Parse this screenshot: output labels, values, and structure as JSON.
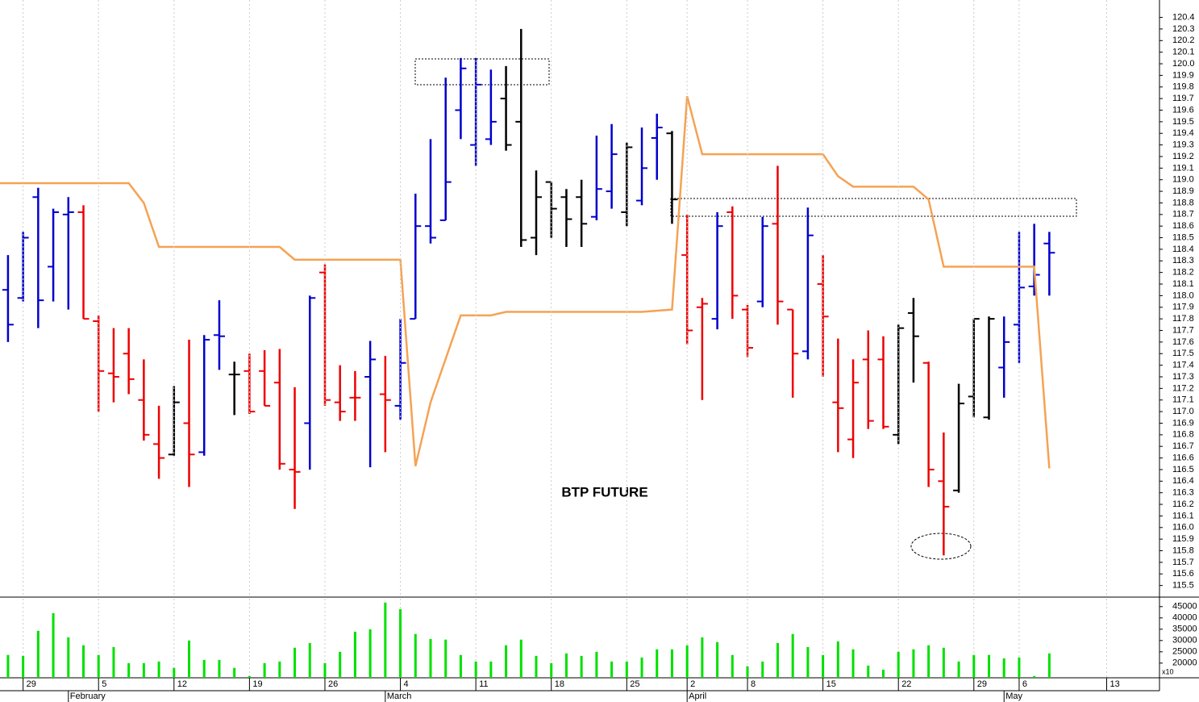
{
  "chart_data": [
    {
      "type": "ohlc",
      "title": "BTP FUTURE",
      "xlim": [
        -0.53,
        76.3
      ],
      "ylim": [
        115.4,
        120.55
      ],
      "yticks": [
        115.5,
        115.6,
        115.7,
        115.8,
        115.9,
        {
          "value": 116,
          "label": "116.0"
        },
        116.1,
        116.2,
        116.3,
        116.4,
        116.5,
        116.6,
        116.7,
        116.8,
        116.9,
        {
          "value": 117,
          "label": "117.0"
        },
        117.1,
        117.2,
        117.3,
        117.4,
        117.5,
        117.6,
        117.7,
        117.8,
        117.9,
        {
          "value": 118,
          "label": "118.0"
        },
        118.1,
        118.2,
        118.3,
        118.4,
        118.5,
        118.6,
        118.7,
        118.8,
        118.9,
        {
          "value": 119,
          "label": "119.0"
        },
        119.1,
        119.2,
        119.3,
        119.4,
        119.5,
        119.6,
        119.7,
        119.8,
        119.9,
        {
          "value": 120,
          "label": "120.0"
        },
        120.1,
        120.2,
        120.3,
        120.4
      ],
      "x": [
        0,
        1,
        2,
        3,
        4,
        5,
        6,
        7,
        8,
        9,
        10,
        11,
        12,
        13,
        14,
        15,
        16,
        17,
        18,
        19,
        20,
        21,
        22,
        23,
        24,
        25,
        26,
        27,
        28,
        29,
        30,
        31,
        32,
        33,
        34,
        35,
        36,
        37,
        38,
        39,
        40,
        41,
        42,
        43,
        44,
        45,
        46,
        47,
        48,
        49,
        50,
        51,
        52,
        53,
        54,
        55,
        56,
        57,
        58,
        59,
        60,
        61,
        62,
        63,
        64,
        65,
        66,
        67,
        68,
        69
      ],
      "high": [
        118.35,
        118.55,
        118.93,
        118.75,
        118.85,
        118.78,
        117.83,
        117.72,
        117.72,
        117.45,
        117.05,
        117.22,
        117.62,
        117.66,
        117.96,
        117.43,
        117.5,
        117.53,
        117.54,
        117.21,
        118.0,
        118.27,
        117.4,
        117.35,
        117.61,
        117.48,
        117.8,
        118.88,
        119.35,
        119.88,
        120.05,
        120.05,
        119.95,
        119.98,
        120.3,
        119.08,
        118.98,
        118.92,
        119.0,
        119.38,
        119.48,
        119.32,
        119.45,
        119.57,
        119.42,
        118.7,
        117.98,
        118.72,
        118.77,
        117.92,
        118.68,
        119.12,
        117.88,
        118.76,
        118.35,
        117.63,
        117.45,
        117.7,
        117.65,
        117.75,
        117.98,
        117.43,
        116.82,
        117.24,
        117.8,
        117.82,
        117.82,
        118.55,
        118.62,
        118.55
      ],
      "low": [
        117.6,
        117.95,
        117.72,
        117.95,
        117.88,
        117.8,
        117.0,
        117.08,
        117.15,
        116.75,
        116.42,
        116.62,
        116.35,
        116.62,
        117.36,
        116.97,
        116.98,
        117.05,
        116.5,
        116.16,
        116.5,
        117.05,
        116.92,
        116.92,
        116.52,
        116.65,
        116.93,
        117.8,
        118.45,
        118.65,
        119.35,
        119.12,
        119.3,
        119.25,
        118.42,
        118.35,
        118.5,
        118.42,
        118.42,
        118.65,
        118.75,
        118.6,
        118.78,
        119.0,
        118.62,
        117.58,
        117.1,
        117.71,
        117.8,
        117.47,
        117.9,
        117.75,
        117.12,
        117.45,
        117.3,
        116.65,
        116.6,
        116.85,
        116.85,
        116.72,
        117.25,
        116.35,
        115.76,
        116.3,
        116.95,
        116.93,
        117.12,
        117.42,
        118.0,
        118.0
      ],
      "open": [
        118.05,
        117.98,
        118.85,
        118.25,
        118.7,
        118.72,
        117.78,
        117.33,
        117.5,
        117.1,
        116.72,
        116.63,
        116.9,
        116.65,
        117.66,
        117.32,
        117.35,
        117.35,
        117.25,
        116.5,
        116.9,
        118.2,
        117.08,
        117.12,
        117.3,
        117.15,
        117.05,
        117.8,
        118.6,
        118.65,
        119.6,
        119.3,
        119.35,
        119.7,
        119.5,
        118.5,
        118.98,
        118.85,
        118.85,
        118.68,
        118.9,
        118.72,
        118.82,
        119.36,
        119.4,
        118.35,
        117.9,
        117.8,
        118.72,
        117.88,
        117.95,
        118.62,
        117.88,
        117.52,
        118.1,
        117.08,
        116.76,
        117.45,
        117.45,
        116.8,
        117.85,
        117.42,
        116.4,
        116.32,
        117.13,
        116.95,
        117.38,
        117.75,
        118.08,
        118.45
      ],
      "close": [
        117.75,
        118.5,
        117.96,
        118.72,
        118.72,
        117.8,
        117.35,
        117.3,
        117.28,
        116.8,
        116.6,
        117.08,
        116.63,
        117.62,
        117.65,
        117.32,
        117.0,
        117.05,
        116.55,
        116.48,
        117.98,
        117.1,
        117.0,
        117.12,
        117.45,
        117.1,
        117.42,
        118.6,
        118.5,
        118.98,
        119.96,
        119.82,
        119.5,
        119.3,
        118.48,
        118.85,
        118.75,
        118.66,
        118.62,
        118.92,
        119.22,
        119.28,
        119.1,
        119.45,
        118.83,
        117.7,
        117.93,
        118.6,
        118.0,
        117.55,
        118.6,
        117.95,
        117.5,
        118.52,
        117.82,
        117.03,
        117.25,
        116.92,
        116.87,
        117.72,
        117.65,
        116.5,
        116.18,
        117.07,
        117.8,
        117.8,
        117.6,
        118.07,
        118.18,
        118.37
      ],
      "bar_colors": [
        "#0000cc",
        "#0000cc",
        "#0000cc",
        "#0000cc",
        "#0000cc",
        "#ee0000",
        "#ee0000",
        "#ee0000",
        "#ee0000",
        "#ee0000",
        "#ee0000",
        "#000000",
        "#ee0000",
        "#0000cc",
        "#0000cc",
        "#000000",
        "#ee0000",
        "#ee0000",
        "#ee0000",
        "#ee0000",
        "#0000cc",
        "#ee0000",
        "#ee0000",
        "#ee0000",
        "#0000cc",
        "#ee0000",
        "#0000cc",
        "#0000cc",
        "#0000cc",
        "#0000cc",
        "#0000cc",
        "#0000cc",
        "#0000cc",
        "#000000",
        "#000000",
        "#000000",
        "#000000",
        "#000000",
        "#000000",
        "#0000cc",
        "#0000cc",
        "#000000",
        "#0000cc",
        "#0000cc",
        "#000000",
        "#ee0000",
        "#ee0000",
        "#0000cc",
        "#ee0000",
        "#ee0000",
        "#0000cc",
        "#ee0000",
        "#ee0000",
        "#0000cc",
        "#ee0000",
        "#ee0000",
        "#ee0000",
        "#ee0000",
        "#ee0000",
        "#000000",
        "#000000",
        "#ee0000",
        "#ee0000",
        "#000000",
        "#000000",
        "#000000",
        "#0000cc",
        "#0000cc",
        "#0000cc",
        "#0000cc"
      ],
      "line": {
        "color": "#f5a253",
        "x": [
          -0.53,
          8,
          9,
          10,
          18,
          19,
          26,
          27,
          28,
          30,
          32,
          33,
          42,
          44,
          45,
          46,
          54,
          55,
          56,
          60,
          61,
          62,
          68,
          69
        ],
        "values": [
          118.97,
          118.97,
          118.8,
          118.42,
          118.42,
          118.31,
          118.31,
          116.53,
          117.08,
          117.83,
          117.83,
          117.86,
          117.86,
          117.88,
          119.72,
          119.22,
          119.22,
          119.03,
          118.94,
          118.94,
          118.83,
          118.25,
          118.25,
          116.51
        ]
      }
    },
    {
      "type": "bar",
      "color": "#00e000",
      "xlim": [
        -0.53,
        76.3
      ],
      "ylim": [
        13500,
        48500
      ],
      "yticks": [
        20000,
        25000,
        30000,
        35000,
        40000,
        45000
      ],
      "y_unit_label": "x10",
      "x": [
        0,
        1,
        2,
        3,
        4,
        5,
        6,
        7,
        8,
        9,
        10,
        11,
        12,
        13,
        14,
        15,
        16,
        17,
        18,
        19,
        20,
        21,
        22,
        23,
        24,
        25,
        26,
        27,
        28,
        29,
        30,
        31,
        32,
        33,
        34,
        35,
        36,
        37,
        38,
        39,
        40,
        41,
        42,
        43,
        44,
        45,
        46,
        47,
        48,
        49,
        50,
        51,
        52,
        53,
        54,
        55,
        56,
        57,
        58,
        59,
        60,
        61,
        62,
        63,
        64,
        65,
        66,
        67,
        68,
        69
      ],
      "values": [
        23600,
        23200,
        34300,
        42100,
        31400,
        27900,
        23600,
        27100,
        20000,
        20000,
        20700,
        17900,
        30000,
        21400,
        21400,
        17900,
        14300,
        20000,
        20700,
        26800,
        28900,
        20000,
        25000,
        33900,
        35000,
        46800,
        43900,
        32900,
        30700,
        30400,
        23600,
        20700,
        20700,
        27900,
        30400,
        23200,
        20000,
        24300,
        23200,
        25000,
        20700,
        20700,
        22500,
        26100,
        26100,
        27900,
        31400,
        29300,
        23600,
        18600,
        20700,
        28900,
        32900,
        27100,
        23600,
        29600,
        26100,
        18900,
        17100,
        25000,
        26100,
        27900,
        26800,
        20700,
        23600,
        23600,
        22100,
        22500,
        14300,
        24300
      ],
      "xticks": [
        {
          "value": 1,
          "label": "29"
        },
        {
          "value": 6,
          "label": "5"
        },
        {
          "value": 11,
          "label": "12"
        },
        {
          "value": 16,
          "label": "19"
        },
        {
          "value": 21,
          "label": "26"
        },
        {
          "value": 26,
          "label": "4"
        },
        {
          "value": 31,
          "label": "11"
        },
        {
          "value": 36,
          "label": "18"
        },
        {
          "value": 41,
          "label": "25"
        },
        {
          "value": 45,
          "label": "2"
        },
        {
          "value": 49,
          "label": "8"
        },
        {
          "value": 54,
          "label": "15"
        },
        {
          "value": 59,
          "label": "22"
        },
        {
          "value": 64,
          "label": "29"
        },
        {
          "value": 67,
          "label": "6"
        },
        {
          "value": 72.8,
          "label": "13"
        }
      ],
      "month_ticks": [
        {
          "value": 4,
          "label": "February"
        },
        {
          "value": 25,
          "label": "March"
        },
        {
          "value": 45,
          "label": "April"
        },
        {
          "value": 66,
          "label": "May"
        }
      ]
    }
  ]
}
